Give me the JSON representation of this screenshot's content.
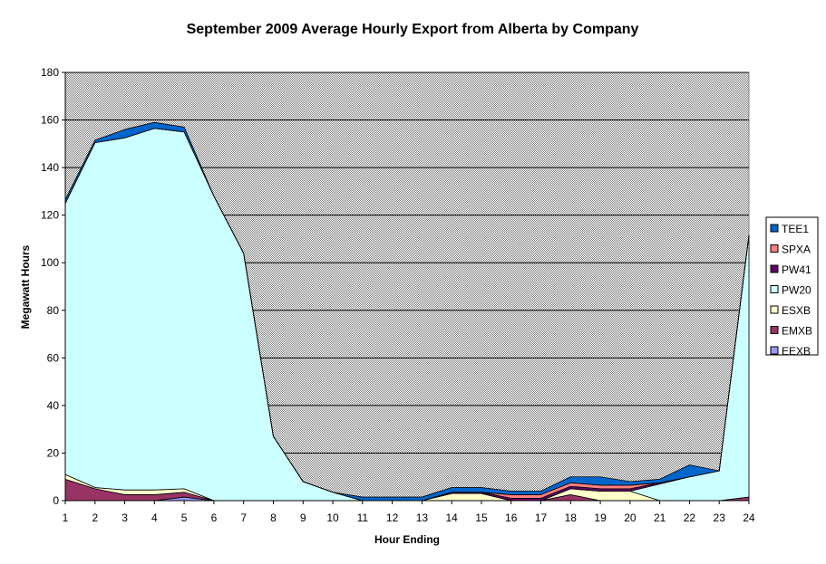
{
  "chart_data": {
    "type": "area",
    "stacked": true,
    "title": "September 2009 Average Hourly Export from Alberta by Company",
    "xlabel": "Hour Ending",
    "ylabel": "Megawatt Hours",
    "ylim": [
      0,
      180
    ],
    "y_ticks": [
      "0",
      "20",
      "40",
      "60",
      "80",
      "100",
      "120",
      "140",
      "160",
      "180"
    ],
    "categories": [
      "1",
      "2",
      "3",
      "4",
      "5",
      "6",
      "7",
      "8",
      "9",
      "10",
      "11",
      "12",
      "13",
      "14",
      "15",
      "16",
      "17",
      "18",
      "19",
      "20",
      "21",
      "22",
      "23",
      "24"
    ],
    "grid": true,
    "plot_background": "#c0c0c0",
    "legend_position": "right",
    "series": [
      {
        "name": "EEXB",
        "color": "#9999ff",
        "values": [
          0,
          0,
          0,
          0,
          1.5,
          0,
          0,
          0,
          0,
          0,
          0,
          0,
          0,
          0,
          0,
          0,
          0,
          0,
          0,
          0,
          0,
          0,
          0,
          0
        ]
      },
      {
        "name": "EMXB",
        "color": "#993366",
        "values": [
          9,
          5,
          2.5,
          2.5,
          2,
          0,
          0,
          0,
          0,
          0,
          0,
          0,
          0,
          0,
          0,
          0,
          0,
          2.5,
          0,
          0,
          0,
          0,
          0,
          1.5
        ]
      },
      {
        "name": "ESXB",
        "color": "#ffffcc",
        "values": [
          2,
          0.5,
          2,
          2,
          1.5,
          0,
          0,
          0,
          0,
          0,
          0,
          0,
          0,
          3,
          3,
          0,
          0,
          2.5,
          4,
          4,
          0,
          0,
          0,
          0
        ]
      },
      {
        "name": "PW20",
        "color": "#ccffff",
        "values": [
          114,
          145,
          148,
          152,
          150,
          128,
          104,
          27,
          8,
          3.5,
          0,
          0,
          0,
          0,
          0,
          0,
          0,
          0,
          0,
          0,
          7,
          10,
          12.5,
          110
        ]
      },
      {
        "name": "PW41",
        "color": "#660066",
        "values": [
          0,
          0,
          0,
          0,
          0,
          0,
          0,
          0,
          0,
          0,
          0,
          0,
          0,
          0.5,
          0.5,
          1,
          1,
          1,
          1,
          1,
          0.5,
          0,
          0,
          0
        ]
      },
      {
        "name": "SPXA",
        "color": "#ff8080",
        "values": [
          0,
          0,
          0,
          0,
          0,
          0,
          0,
          0,
          0,
          0,
          0,
          0,
          0,
          0,
          0,
          1.5,
          1.5,
          1.5,
          1.5,
          1.5,
          0,
          0,
          0,
          0
        ]
      },
      {
        "name": "TEE1",
        "color": "#0066cc",
        "values": [
          1.5,
          1,
          3.5,
          2.5,
          2,
          0,
          0,
          0,
          0,
          0,
          1.5,
          1.5,
          1.5,
          2,
          2,
          1.5,
          1.5,
          2.5,
          3.5,
          1.5,
          1.5,
          5,
          0,
          0
        ]
      }
    ]
  }
}
